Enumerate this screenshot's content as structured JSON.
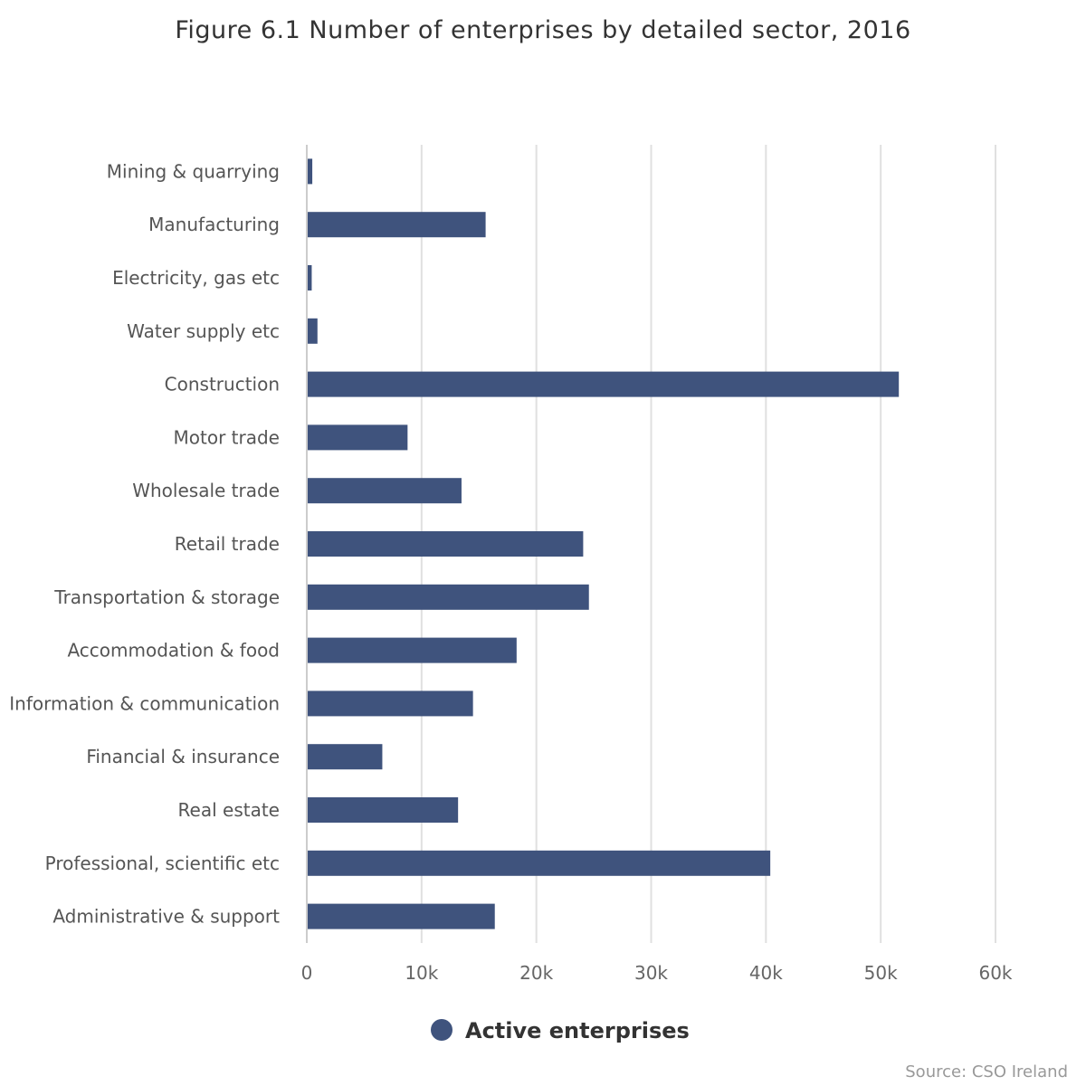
{
  "chart_data": {
    "type": "bar",
    "orientation": "horizontal",
    "title": "Figure 6.1 Number of enterprises by detailed sector, 2016",
    "categories": [
      "Mining & quarrying",
      "Manufacturing",
      "Electricity, gas etc",
      "Water supply etc",
      "Construction",
      "Motor trade",
      "Wholesale trade",
      "Retail trade",
      "Transportation & storage",
      "Accommodation & food",
      "Information & communication",
      "Financial & insurance",
      "Real estate",
      "Professional, scientific etc",
      "Administrative & support"
    ],
    "series": [
      {
        "name": "Active enterprises",
        "color": "#3f537d",
        "values": [
          400,
          15500,
          350,
          850,
          51500,
          8700,
          13400,
          24000,
          24500,
          18200,
          14400,
          6500,
          13100,
          40300,
          16300
        ]
      }
    ],
    "xlim": [
      0,
      60000
    ],
    "x_ticks": [
      0,
      10000,
      20000,
      30000,
      40000,
      50000,
      60000
    ],
    "x_tick_labels": [
      "0",
      "10k",
      "20k",
      "30k",
      "40k",
      "50k",
      "60k"
    ],
    "grid": true,
    "legend": {
      "position": "bottom-center"
    },
    "source": "Source: CSO Ireland"
  }
}
